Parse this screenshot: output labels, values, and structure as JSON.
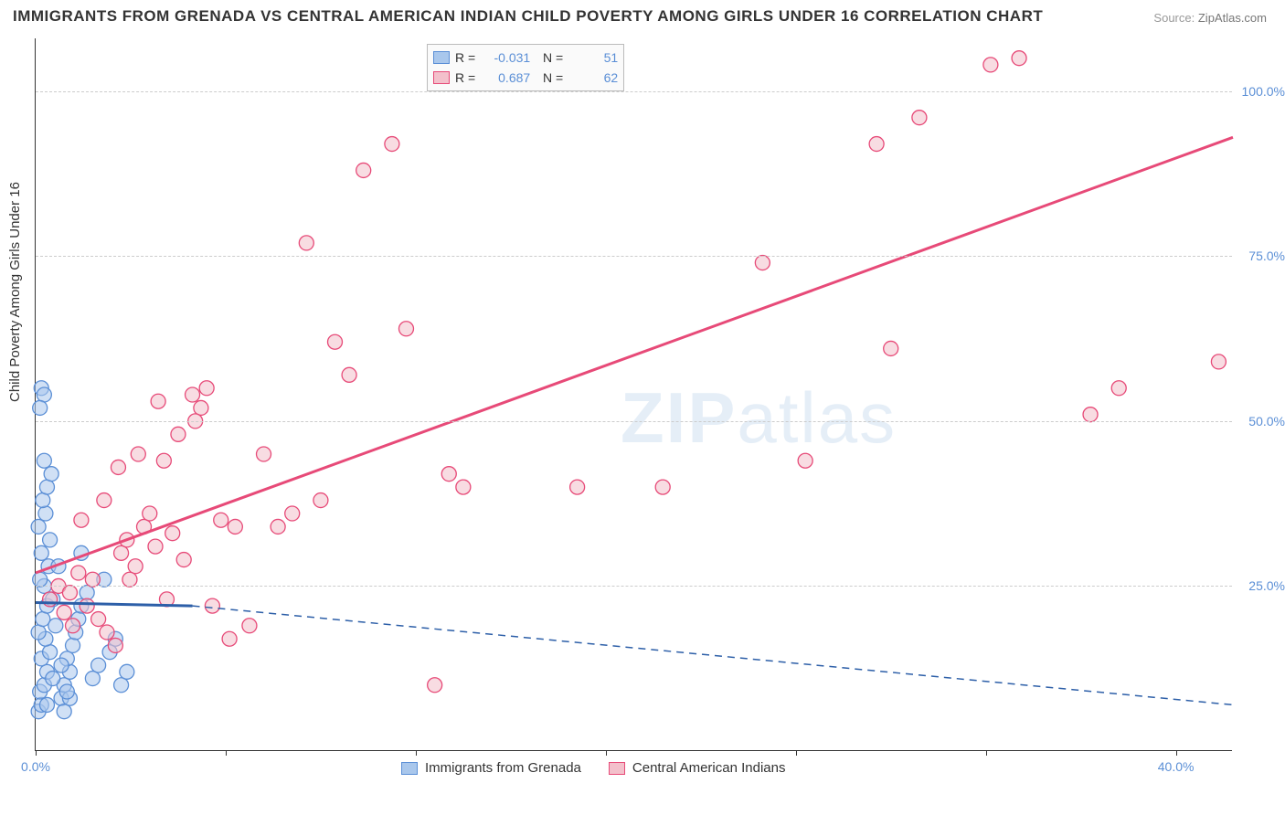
{
  "title": "IMMIGRANTS FROM GRENADA VS CENTRAL AMERICAN INDIAN CHILD POVERTY AMONG GIRLS UNDER 16 CORRELATION CHART",
  "source_label": "Source:",
  "source_value": "ZipAtlas.com",
  "watermark_a": "ZIP",
  "watermark_b": "atlas",
  "ylabel": "Child Poverty Among Girls Under 16",
  "chart": {
    "type": "scatter",
    "xlim": [
      0,
      42
    ],
    "ylim": [
      0,
      108
    ],
    "yticks": [
      25,
      50,
      75,
      100
    ],
    "ytick_labels": [
      "25.0%",
      "50.0%",
      "75.0%",
      "100.0%"
    ],
    "xticks": [
      0,
      6.67,
      13.33,
      20,
      26.67,
      33.33,
      40
    ],
    "xtick_labels": [
      "0.0%",
      "",
      "",
      "",
      "",
      "",
      "40.0%"
    ],
    "grid_color": "#d8d8d8",
    "background_color": "#ffffff",
    "axis_color": "#333333",
    "tick_text_color": "#5b8fd6",
    "marker_radius": 8,
    "marker_opacity": 0.55,
    "series": [
      {
        "name": "Immigrants from Grenada",
        "color_fill": "#a9c7ec",
        "color_stroke": "#5b8fd6",
        "line_color": "#2d5fa8",
        "R": "-0.031",
        "N": "51",
        "trend": {
          "x1": 0,
          "y1": 22.5,
          "x2": 5.5,
          "y2": 22.0,
          "extend_x2": 42,
          "extend_y2": 7.0
        },
        "points": [
          [
            0.1,
            6
          ],
          [
            0.2,
            7
          ],
          [
            0.15,
            9
          ],
          [
            0.3,
            10
          ],
          [
            0.4,
            12
          ],
          [
            0.2,
            14
          ],
          [
            0.5,
            15
          ],
          [
            0.35,
            17
          ],
          [
            0.1,
            18
          ],
          [
            0.25,
            20
          ],
          [
            0.4,
            22
          ],
          [
            0.6,
            23
          ],
          [
            0.3,
            25
          ],
          [
            0.15,
            26
          ],
          [
            0.45,
            28
          ],
          [
            0.2,
            30
          ],
          [
            0.5,
            32
          ],
          [
            0.1,
            34
          ],
          [
            0.35,
            36
          ],
          [
            0.25,
            38
          ],
          [
            0.4,
            40
          ],
          [
            0.55,
            42
          ],
          [
            0.3,
            44
          ],
          [
            0.9,
            8
          ],
          [
            1.0,
            10
          ],
          [
            1.2,
            12
          ],
          [
            1.1,
            14
          ],
          [
            1.3,
            16
          ],
          [
            1.4,
            18
          ],
          [
            1.5,
            20
          ],
          [
            1.6,
            22
          ],
          [
            1.8,
            24
          ],
          [
            2.0,
            11
          ],
          [
            2.2,
            13
          ],
          [
            2.4,
            26
          ],
          [
            2.6,
            15
          ],
          [
            2.8,
            17
          ],
          [
            3.0,
            10
          ],
          [
            3.2,
            12
          ],
          [
            1.0,
            6
          ],
          [
            1.2,
            8
          ],
          [
            0.8,
            28
          ],
          [
            1.6,
            30
          ],
          [
            0.2,
            55
          ],
          [
            0.3,
            54
          ],
          [
            0.15,
            52
          ],
          [
            0.7,
            19
          ],
          [
            1.1,
            9
          ],
          [
            0.4,
            7
          ],
          [
            0.6,
            11
          ],
          [
            0.9,
            13
          ]
        ]
      },
      {
        "name": "Central American Indians",
        "color_fill": "#f3c0cb",
        "color_stroke": "#e74a78",
        "line_color": "#e74a78",
        "R": "0.687",
        "N": "62",
        "trend": {
          "x1": 0,
          "y1": 27.0,
          "x2": 42,
          "y2": 93.0
        },
        "points": [
          [
            0.5,
            23
          ],
          [
            0.8,
            25
          ],
          [
            1.0,
            21
          ],
          [
            1.2,
            24
          ],
          [
            1.5,
            27
          ],
          [
            1.8,
            22
          ],
          [
            2.0,
            26
          ],
          [
            2.2,
            20
          ],
          [
            2.5,
            18
          ],
          [
            2.8,
            16
          ],
          [
            3.0,
            30
          ],
          [
            3.2,
            32
          ],
          [
            3.5,
            28
          ],
          [
            3.8,
            34
          ],
          [
            4.0,
            36
          ],
          [
            4.2,
            31
          ],
          [
            4.5,
            44
          ],
          [
            4.8,
            33
          ],
          [
            5.0,
            48
          ],
          [
            5.2,
            29
          ],
          [
            5.5,
            54
          ],
          [
            5.8,
            52
          ],
          [
            6.0,
            55
          ],
          [
            6.5,
            35
          ],
          [
            7.0,
            34
          ],
          [
            7.5,
            19
          ],
          [
            8.0,
            45
          ],
          [
            8.5,
            34
          ],
          [
            9.0,
            36
          ],
          [
            9.5,
            77
          ],
          [
            10.0,
            38
          ],
          [
            10.5,
            62
          ],
          [
            11.0,
            57
          ],
          [
            11.5,
            88
          ],
          [
            12.5,
            92
          ],
          [
            13.0,
            64
          ],
          [
            14.0,
            10
          ],
          [
            14.5,
            42
          ],
          [
            15.0,
            40
          ],
          [
            6.2,
            22
          ],
          [
            6.8,
            17
          ],
          [
            3.6,
            45
          ],
          [
            2.4,
            38
          ],
          [
            1.6,
            35
          ],
          [
            1.3,
            19
          ],
          [
            25.5,
            74
          ],
          [
            27.0,
            44
          ],
          [
            29.5,
            92
          ],
          [
            30.0,
            61
          ],
          [
            31.0,
            96
          ],
          [
            33.5,
            104
          ],
          [
            34.5,
            105
          ],
          [
            37.0,
            51
          ],
          [
            38.0,
            55
          ],
          [
            41.5,
            59
          ],
          [
            19.0,
            40
          ],
          [
            22.0,
            40
          ],
          [
            4.3,
            53
          ],
          [
            5.6,
            50
          ],
          [
            2.9,
            43
          ],
          [
            3.3,
            26
          ],
          [
            4.6,
            23
          ]
        ]
      }
    ]
  },
  "legend_bottom": [
    {
      "label": "Immigrants from Grenada",
      "fill": "#a9c7ec",
      "stroke": "#5b8fd6"
    },
    {
      "label": "Central American Indians",
      "fill": "#f3c0cb",
      "stroke": "#e74a78"
    }
  ]
}
